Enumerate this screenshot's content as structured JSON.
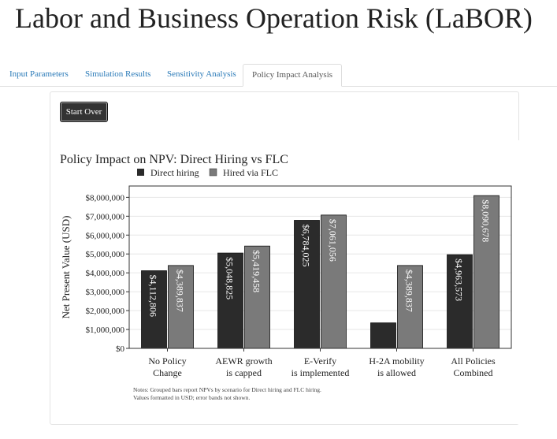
{
  "app": {
    "title": "Labor and Business Operation Risk (LaBOR)"
  },
  "tabs": [
    {
      "label": "Input Parameters",
      "active": false
    },
    {
      "label": "Simulation Results",
      "active": false
    },
    {
      "label": "Sensitivity Analysis",
      "active": false
    },
    {
      "label": "Policy Impact Analysis",
      "active": true
    }
  ],
  "panel": {
    "start_over_label": "Start Over"
  },
  "colors": {
    "direct": "#2b2b2b",
    "flc": "#7a7a7a",
    "tab_link": "#2a7ab8"
  },
  "chart_data": {
    "type": "bar",
    "title": "Policy Impact on NPV: Direct Hiring vs FLC",
    "ylabel": "Net Present Value (USD)",
    "xlabel": "",
    "ylim": [
      0,
      8600000
    ],
    "yticks": [
      0,
      1000000,
      2000000,
      3000000,
      4000000,
      5000000,
      6000000,
      7000000,
      8000000
    ],
    "ytick_labels": [
      "$0",
      "$1,000,000",
      "$2,000,000",
      "$3,000,000",
      "$4,000,000",
      "$5,000,000",
      "$6,000,000",
      "$7,000,000",
      "$8,000,000"
    ],
    "legend_position": "top-left",
    "grid": true,
    "categories": [
      [
        "No Policy",
        "Change"
      ],
      [
        "AEWR growth",
        "is capped"
      ],
      [
        "E-Verify",
        "is implemented"
      ],
      [
        "H-2A mobility",
        "is allowed"
      ],
      [
        "All Policies",
        "Combined"
      ]
    ],
    "series": [
      {
        "name": "Direct hiring",
        "values": [
          4112806,
          5048825,
          6784025,
          1350000,
          4963573
        ],
        "labels": [
          "$4,112,806",
          "$5,048,825",
          "$6,784,025",
          "",
          "$4,963,573"
        ]
      },
      {
        "name": "Hired via FLC",
        "values": [
          4389837,
          5419458,
          7061056,
          4389837,
          8090678
        ],
        "labels": [
          "$4,389,837",
          "$5,419,458",
          "$7,061,056",
          "$4,389,837",
          "$8,090,678"
        ]
      }
    ],
    "notes": [
      "Notes: Grouped bars report NPVs by scenario for Direct hiring and FLC hiring.",
      "Values formatted in USD; error bands not shown."
    ]
  }
}
